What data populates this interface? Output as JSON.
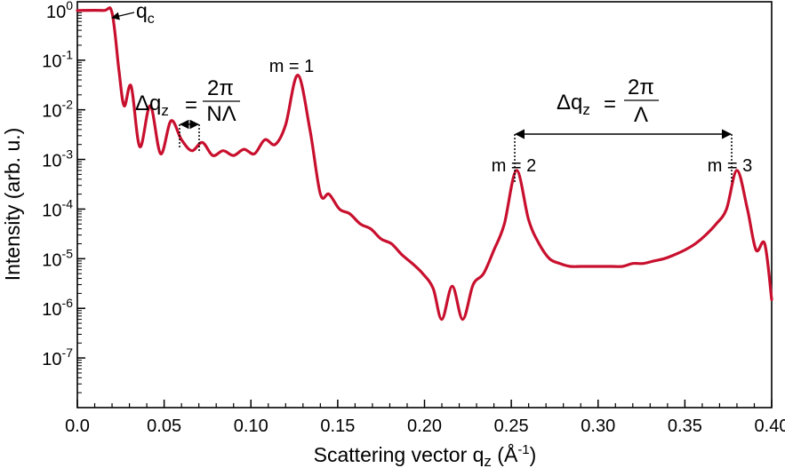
{
  "chart_data": {
    "type": "line",
    "xlabel": "Scattering vector q",
    "xlabel_sub": "z",
    "xlabel_unit_prefix": " (Å",
    "xlabel_unit_sup": "-1",
    "xlabel_unit_suffix": ")",
    "ylabel": "Intensity (arb. u.)",
    "xlim": [
      0.0,
      0.4
    ],
    "ylim": [
      1e-08,
      1.5
    ],
    "yscale": "log",
    "grid": false,
    "legend": "none",
    "x_ticks": [
      "0.0",
      "0.05",
      "0.10",
      "0.15",
      "0.20",
      "0.25",
      "0.30",
      "0.35",
      "0.40"
    ],
    "y_ticks": [
      {
        "base": "10",
        "exp": "0"
      },
      {
        "base": "10",
        "exp": "-1"
      },
      {
        "base": "10",
        "exp": "-2"
      },
      {
        "base": "10",
        "exp": "-3"
      },
      {
        "base": "10",
        "exp": "-4"
      },
      {
        "base": "10",
        "exp": "-5"
      },
      {
        "base": "10",
        "exp": "-6"
      },
      {
        "base": "10",
        "exp": "-7"
      }
    ],
    "series": [
      {
        "color": "#c8102e",
        "critical_edge_q": 0.02,
        "bragg_peaks": [
          {
            "order": 1,
            "q": 0.127,
            "intensity": 0.05
          },
          {
            "order": 2,
            "q": 0.253,
            "intensity": 0.0006
          },
          {
            "order": 3,
            "q": 0.38,
            "intensity": 0.0006
          }
        ],
        "fringe_spacing": 0.0116,
        "minimum_intensity": 6e-07,
        "points": [
          [
            0.0,
            1.0
          ],
          [
            0.015,
            1.0
          ],
          [
            0.02,
            0.9
          ],
          [
            0.024,
            0.06
          ],
          [
            0.027,
            0.012
          ],
          [
            0.031,
            0.03
          ],
          [
            0.036,
            0.0018
          ],
          [
            0.042,
            0.012
          ],
          [
            0.048,
            0.0013
          ],
          [
            0.054,
            0.006
          ],
          [
            0.06,
            0.0025
          ],
          [
            0.066,
            0.0015
          ],
          [
            0.072,
            0.0022
          ],
          [
            0.078,
            0.0012
          ],
          [
            0.084,
            0.0015
          ],
          [
            0.09,
            0.0012
          ],
          [
            0.096,
            0.0016
          ],
          [
            0.102,
            0.0013
          ],
          [
            0.108,
            0.0025
          ],
          [
            0.114,
            0.002
          ],
          [
            0.12,
            0.005
          ],
          [
            0.127,
            0.05
          ],
          [
            0.134,
            0.004
          ],
          [
            0.14,
            0.0002
          ],
          [
            0.145,
            0.0002
          ],
          [
            0.151,
            0.0001
          ],
          [
            0.157,
            8e-05
          ],
          [
            0.163,
            5e-05
          ],
          [
            0.169,
            4e-05
          ],
          [
            0.175,
            2.5e-05
          ],
          [
            0.181,
            2e-05
          ],
          [
            0.187,
            1.2e-05
          ],
          [
            0.193,
            8e-06
          ],
          [
            0.199,
            5e-06
          ],
          [
            0.205,
            2.5e-06
          ],
          [
            0.21,
            6e-07
          ],
          [
            0.216,
            2.8e-06
          ],
          [
            0.222,
            6e-07
          ],
          [
            0.228,
            3e-06
          ],
          [
            0.234,
            5e-06
          ],
          [
            0.24,
            1.5e-05
          ],
          [
            0.246,
            5e-05
          ],
          [
            0.253,
            0.0006
          ],
          [
            0.26,
            6e-05
          ],
          [
            0.266,
            2e-05
          ],
          [
            0.272,
            1e-05
          ],
          [
            0.278,
            8e-06
          ],
          [
            0.284,
            7e-06
          ],
          [
            0.29,
            7e-06
          ],
          [
            0.296,
            7e-06
          ],
          [
            0.302,
            7e-06
          ],
          [
            0.308,
            7e-06
          ],
          [
            0.314,
            7e-06
          ],
          [
            0.32,
            8e-06
          ],
          [
            0.326,
            8e-06
          ],
          [
            0.332,
            9e-06
          ],
          [
            0.338,
            1e-05
          ],
          [
            0.344,
            1.2e-05
          ],
          [
            0.35,
            1.5e-05
          ],
          [
            0.356,
            2e-05
          ],
          [
            0.362,
            3e-05
          ],
          [
            0.368,
            5e-05
          ],
          [
            0.374,
            0.0001
          ],
          [
            0.38,
            0.0006
          ],
          [
            0.386,
            0.0001
          ],
          [
            0.391,
            1.5e-05
          ],
          [
            0.396,
            2e-05
          ],
          [
            0.4,
            1.5e-06
          ]
        ]
      }
    ],
    "annotations": {
      "qc_label": "q",
      "qc_label_sub": "c",
      "peak_labels": [
        "m = 1",
        "m = 2",
        "m = 3"
      ],
      "kiessig_formula": {
        "prefix": "Δq",
        "sub": "z",
        "eq": "=",
        "numerator": "2π",
        "denominator": "NΛ"
      },
      "bragg_formula": {
        "prefix": "Δq",
        "sub": "z",
        "eq": "=",
        "numerator": "2π",
        "denominator": "Λ"
      }
    }
  }
}
